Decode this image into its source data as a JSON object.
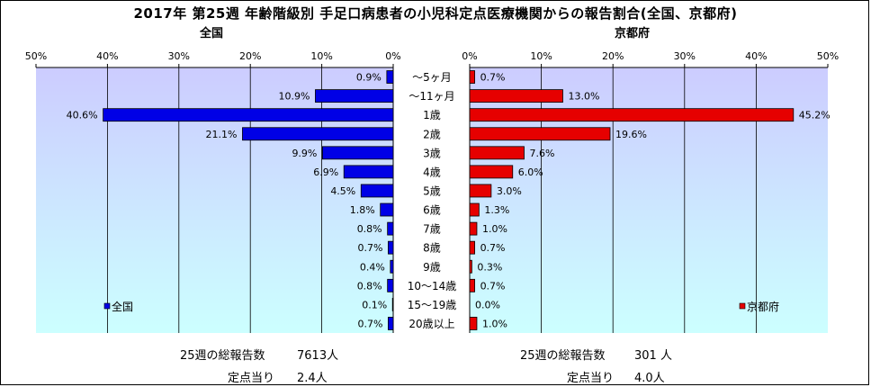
{
  "title": "2017年 第25週 年齢階級別 手足口病患者の小児科定点医療機関からの報告割合(全国、京都府)",
  "colors": {
    "national": "#0000e6",
    "kyoto": "#e60000",
    "plot_bg_top": "#ccccff",
    "plot_bg_bottom": "#ccffff"
  },
  "chart_data": {
    "type": "bar",
    "categories": [
      "～5ヶ月",
      "～11ヶ月",
      "1歳",
      "2歳",
      "3歳",
      "4歳",
      "5歳",
      "6歳",
      "7歳",
      "8歳",
      "9歳",
      "10～14歳",
      "15～19歳",
      "20歳以上"
    ],
    "left": {
      "panel_title": "全国",
      "legend": "全国",
      "orientation": "reversed",
      "xlim": [
        0,
        50
      ],
      "ticks": [
        "50%",
        "40%",
        "30%",
        "20%",
        "10%",
        "0%"
      ],
      "values": [
        0.9,
        10.9,
        40.6,
        21.1,
        9.9,
        6.9,
        4.5,
        1.8,
        0.8,
        0.7,
        0.4,
        0.8,
        0.1,
        0.7
      ],
      "labels": [
        "0.9%",
        "10.9%",
        "40.6%",
        "21.1%",
        "9.9%",
        "6.9%",
        "4.5%",
        "1.8%",
        "0.8%",
        "0.7%",
        "0.4%",
        "0.8%",
        "0.1%",
        "0.7%"
      ]
    },
    "right": {
      "panel_title": "京都府",
      "legend": "京都府",
      "xlim": [
        0,
        50
      ],
      "ticks": [
        "0%",
        "10%",
        "20%",
        "30%",
        "40%",
        "50%"
      ],
      "values": [
        0.7,
        13.0,
        45.2,
        19.6,
        7.6,
        6.0,
        3.0,
        1.3,
        1.0,
        0.7,
        0.3,
        0.7,
        0.0,
        1.0
      ],
      "labels": [
        "0.7%",
        "13.0%",
        "45.2%",
        "19.6%",
        "7.6%",
        "6.0%",
        "3.0%",
        "1.3%",
        "1.0%",
        "0.7%",
        "0.3%",
        "0.7%",
        "0.0%",
        "1.0%"
      ]
    },
    "grid": true,
    "legend_position": "bottom-left / bottom-right"
  },
  "footer": {
    "national": {
      "reports_label": "25週の総報告数",
      "reports_value": "7613人",
      "per_site_label": "定点当り",
      "per_site_value": "2.4人"
    },
    "kyoto": {
      "reports_label": "25週の総報告数",
      "reports_value": "301 人",
      "per_site_label": "定点当り",
      "per_site_value": "4.0人"
    }
  }
}
